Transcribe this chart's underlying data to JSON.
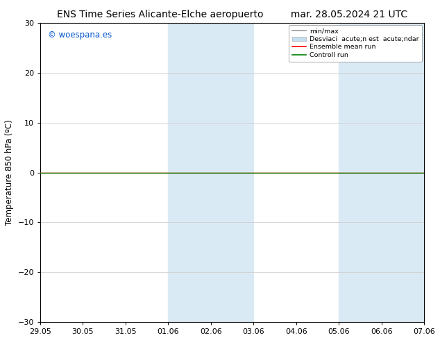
{
  "title_left": "ENS Time Series Alicante-Elche aeropuerto",
  "title_right": "mar. 28.05.2024 21 UTC",
  "ylabel": "Temperature 850 hPa (ºC)",
  "ylim": [
    -30,
    30
  ],
  "yticks": [
    -30,
    -20,
    -10,
    0,
    10,
    20,
    30
  ],
  "xtick_labels": [
    "29.05",
    "30.05",
    "31.05",
    "01.06",
    "02.06",
    "03.06",
    "04.06",
    "05.06",
    "06.06",
    "07.06"
  ],
  "shaded_regions": [
    {
      "xmin": 3,
      "xmax": 5
    },
    {
      "xmin": 7,
      "xmax": 9
    }
  ],
  "shaded_color": "#daeaf5",
  "watermark": "© woespana.es",
  "watermark_color": "#0055cc",
  "legend_labels": [
    "min/max",
    "Desviaci  acute;n est  acute;ndar",
    "Ensemble mean run",
    "Controll run"
  ],
  "background_color": "#ffffff",
  "grid_color": "#cccccc",
  "title_fontsize": 10,
  "tick_fontsize": 8,
  "ylabel_fontsize": 8.5
}
